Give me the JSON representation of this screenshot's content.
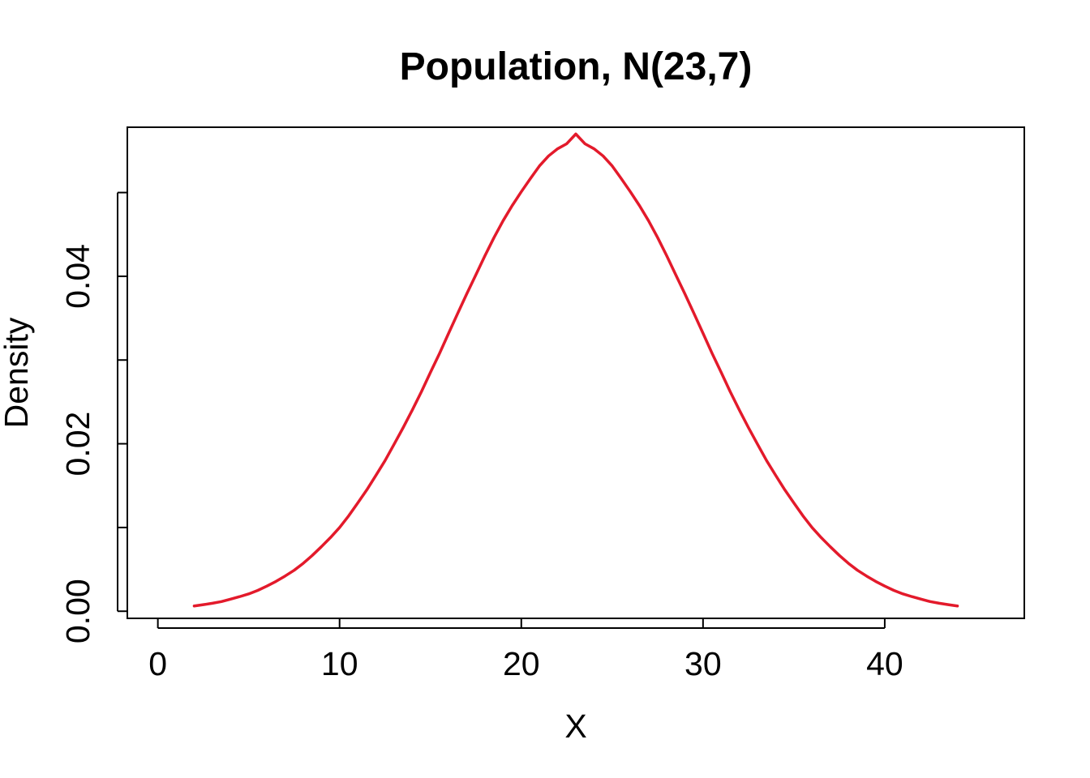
{
  "chart_data": {
    "type": "line",
    "title": "Population, N(23,7)",
    "xlabel": "X",
    "ylabel": "Density",
    "xlim": [
      -1.68,
      47.68
    ],
    "ylim": [
      -0.00085,
      0.0578
    ],
    "x_ticks": [
      0,
      10,
      20,
      30,
      40
    ],
    "x_tick_labels": [
      "0",
      "10",
      "20",
      "30",
      "40"
    ],
    "y_ticks": [
      0.0,
      0.01,
      0.02,
      0.03,
      0.04,
      0.05
    ],
    "y_tick_labels": [
      "0.00",
      "",
      "0.02",
      "",
      "0.04",
      ""
    ],
    "grid": false,
    "legend": "none",
    "colors": {
      "series": "#e31a2b",
      "axis": "#000000",
      "background": "#ffffff"
    },
    "series": [
      {
        "distribution": "normal",
        "mean": 23,
        "sd": 7,
        "x": [
          2.0,
          2.5,
          3.0,
          3.5,
          4.0,
          4.5,
          5.0,
          5.5,
          6.0,
          6.5,
          7.0,
          7.5,
          8.0,
          8.5,
          9.0,
          9.5,
          10.0,
          10.5,
          11.0,
          11.5,
          12.0,
          12.5,
          13.0,
          13.5,
          14.0,
          14.5,
          15.0,
          15.5,
          16.0,
          16.5,
          17.0,
          17.5,
          18.0,
          18.5,
          19.0,
          19.5,
          20.0,
          20.5,
          21.0,
          21.5,
          22.0,
          22.5,
          23.0,
          23.5,
          24.0,
          24.5,
          25.0,
          25.5,
          26.0,
          26.5,
          27.0,
          27.5,
          28.0,
          28.5,
          29.0,
          29.5,
          30.0,
          30.5,
          31.0,
          31.5,
          32.0,
          32.5,
          33.0,
          33.5,
          34.0,
          34.5,
          35.0,
          35.5,
          36.0,
          36.5,
          37.0,
          37.5,
          38.0,
          38.5,
          39.0,
          39.5,
          40.0,
          40.5,
          41.0,
          41.5,
          42.0,
          42.5,
          43.0,
          43.5,
          44.0
        ],
        "y": [
          0.00063,
          0.00078,
          0.00095,
          0.00115,
          0.00144,
          0.00174,
          0.00207,
          0.00249,
          0.003,
          0.00356,
          0.0042,
          0.00489,
          0.00572,
          0.00667,
          0.00771,
          0.0088,
          0.01,
          0.01139,
          0.01293,
          0.0145,
          0.01622,
          0.01798,
          0.01994,
          0.02193,
          0.02402,
          0.0262,
          0.02852,
          0.03079,
          0.03319,
          0.03557,
          0.03791,
          0.04017,
          0.04246,
          0.04463,
          0.04664,
          0.04845,
          0.0501,
          0.05167,
          0.05318,
          0.05437,
          0.05523,
          0.05583,
          0.05699,
          0.05583,
          0.05523,
          0.05437,
          0.05318,
          0.05167,
          0.0501,
          0.04845,
          0.04664,
          0.04463,
          0.04246,
          0.04017,
          0.03791,
          0.03557,
          0.03319,
          0.03079,
          0.02852,
          0.0262,
          0.02402,
          0.02193,
          0.01994,
          0.01798,
          0.01622,
          0.0145,
          0.01293,
          0.01139,
          0.01,
          0.0088,
          0.00771,
          0.00667,
          0.00572,
          0.00489,
          0.0042,
          0.00356,
          0.003,
          0.00249,
          0.00207,
          0.00174,
          0.00144,
          0.00115,
          0.00095,
          0.00078,
          0.00063
        ]
      }
    ]
  }
}
